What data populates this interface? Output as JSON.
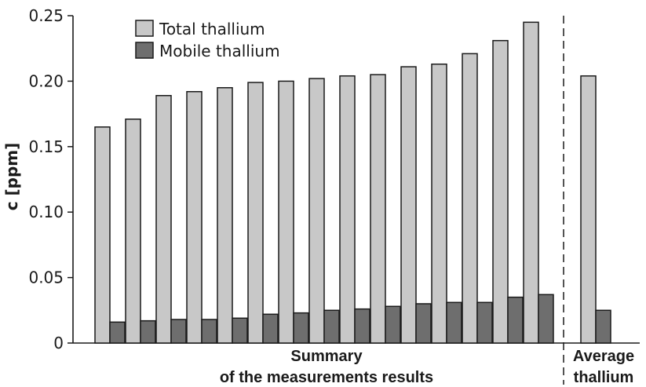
{
  "chart_data": {
    "type": "bar",
    "title": "",
    "ylabel": "c [ppm]",
    "ylim": [
      0,
      0.25
    ],
    "yticks": [
      {
        "value": 0,
        "label": "0"
      },
      {
        "value": 0.05,
        "label": "0.05"
      },
      {
        "value": 0.1,
        "label": "0.10"
      },
      {
        "value": 0.15,
        "label": "0.15"
      },
      {
        "value": 0.2,
        "label": "0.20"
      },
      {
        "value": 0.25,
        "label": "0.25"
      }
    ],
    "legend_position": "top-left",
    "colors": {
      "total": "#c8c8c8",
      "mobile": "#6e6e6e"
    },
    "series": [
      {
        "name": "Total thallium",
        "values": [
          0.165,
          0.171,
          0.189,
          0.192,
          0.195,
          0.199,
          0.2,
          0.202,
          0.204,
          0.205,
          0.211,
          0.213,
          0.221,
          0.231,
          0.245,
          0.204
        ]
      },
      {
        "name": "Mobile thallium",
        "values": [
          0.016,
          0.017,
          0.018,
          0.018,
          0.019,
          0.022,
          0.023,
          0.025,
          0.026,
          0.028,
          0.03,
          0.031,
          0.031,
          0.035,
          0.037,
          0.025
        ]
      }
    ],
    "groups": [
      {
        "label_lines": [
          "Summary",
          "of the measurements results"
        ],
        "count": 15
      },
      {
        "label_lines": [
          "Average",
          "thallium"
        ],
        "count": 1
      }
    ],
    "separator": "dashed-vertical-line"
  }
}
